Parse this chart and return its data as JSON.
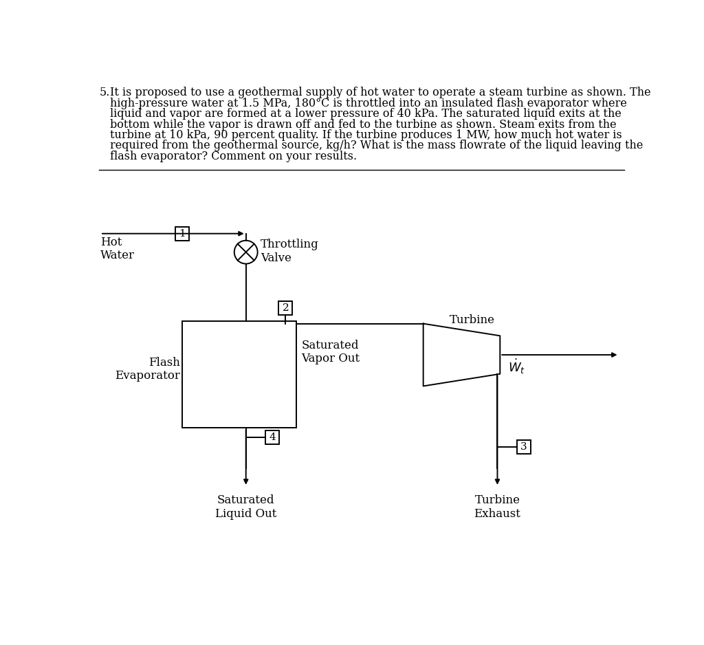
{
  "background_color": "#ffffff",
  "text_color": "#000000",
  "problem_text_line1": "5.  It is proposed to use a geothermal supply of hot water to operate a steam turbine as shown. The",
  "problem_text_rest": [
    "high-pressure water at 1.5 MPa, 180°C is throttled into an insulated flash evaporator where",
    "liquid and vapor are formed at a lower pressure of 40 kPa. The saturated liquid exits at the",
    "bottom while the vapor is drawn off and fed to the turbine as shown. Steam exits from the",
    "turbine at 10 kPa, 90 percent quality. If the turbine produces 1 MW, how much hot water is",
    "required from the geothermal source, kg/h? What is the mass flowrate of the liquid leaving the",
    "flash evaporator? Comment on your results."
  ],
  "font_size_problem": 11.5,
  "font_size_diagram": 12,
  "font_size_node": 11,
  "lw": 1.4
}
